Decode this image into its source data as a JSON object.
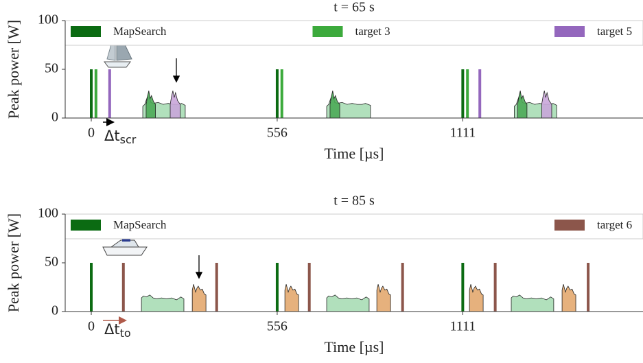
{
  "chart_data": [
    {
      "type": "bar",
      "title": "t = 65 s",
      "xlabel": "Time [µs]",
      "ylabel": "Peak power [W]",
      "xlim": [
        -78,
        1650
      ],
      "ylim": [
        0,
        100
      ],
      "xticks": [
        0,
        556,
        1111
      ],
      "yticks": [
        0,
        50,
        100
      ],
      "legend": "upper",
      "annotation": {
        "text": "Δt",
        "sub": "scr"
      },
      "series": [
        {
          "name": "MapSearch",
          "color": "#0b6b12",
          "x": [
            0,
            556,
            1111
          ],
          "values": [
            50,
            50,
            50
          ]
        },
        {
          "name": "target 3",
          "color": "#3caa3c",
          "x": [
            14,
            570,
            1125
          ],
          "values": [
            50,
            50,
            50
          ]
        },
        {
          "name": "target 5",
          "color": "#9467bd",
          "x": [
            55,
            1162
          ],
          "values": [
            50,
            50
          ]
        }
      ],
      "echoes": [
        {
          "color": "#a8ddb5",
          "x": [
            154,
            154,
            160,
            166,
            172,
            178,
            186,
            200,
            215,
            230,
            245,
            260,
            270,
            281,
            281
          ],
          "values": [
            0,
            12,
            14,
            20,
            26,
            16,
            15,
            16,
            14,
            15,
            14,
            14,
            15,
            13,
            0
          ]
        },
        {
          "color": "#4daa57",
          "x": [
            164,
            164,
            168,
            172,
            176,
            180,
            186,
            192,
            192
          ],
          "values": [
            0,
            14,
            22,
            28,
            20,
            23,
            17,
            14,
            0
          ]
        },
        {
          "color": "#c9a6d9",
          "x": [
            236,
            236,
            240,
            244,
            248,
            252,
            258,
            266,
            266
          ],
          "values": [
            0,
            14,
            22,
            28,
            21,
            26,
            18,
            14,
            0
          ]
        },
        {
          "color": "#a8ddb5",
          "x": [
            704,
            704,
            710,
            716,
            722,
            728,
            736,
            750,
            765,
            780,
            795,
            810,
            820,
            835,
            835
          ],
          "values": [
            0,
            12,
            14,
            20,
            26,
            16,
            15,
            16,
            14,
            15,
            14,
            14,
            15,
            13,
            0
          ]
        },
        {
          "color": "#4daa57",
          "x": [
            714,
            714,
            718,
            722,
            726,
            730,
            736,
            743,
            743
          ],
          "values": [
            0,
            14,
            22,
            28,
            20,
            23,
            17,
            14,
            0
          ]
        },
        {
          "color": "#a8ddb5",
          "x": [
            1265,
            1265,
            1271,
            1277,
            1283,
            1289,
            1297,
            1311,
            1326,
            1341,
            1356,
            1371,
            1381,
            1392,
            1392
          ],
          "values": [
            0,
            12,
            14,
            20,
            26,
            16,
            15,
            16,
            14,
            15,
            14,
            14,
            15,
            13,
            0
          ]
        },
        {
          "color": "#4daa57",
          "x": [
            1275,
            1275,
            1279,
            1283,
            1287,
            1291,
            1297,
            1303,
            1303
          ],
          "values": [
            0,
            14,
            22,
            28,
            20,
            23,
            17,
            14,
            0
          ]
        },
        {
          "color": "#c9a6d9",
          "x": [
            1347,
            1347,
            1351,
            1355,
            1359,
            1363,
            1369,
            1377,
            1377
          ],
          "values": [
            0,
            14,
            22,
            28,
            21,
            26,
            18,
            14,
            0
          ]
        }
      ]
    },
    {
      "type": "bar",
      "title": "t = 85 s",
      "xlabel": "Time [µs]",
      "ylabel": "Peak power [W]",
      "xlim": [
        -78,
        1650
      ],
      "ylim": [
        0,
        100
      ],
      "xticks": [
        0,
        556,
        1111
      ],
      "yticks": [
        0,
        50,
        100
      ],
      "legend": "upper",
      "annotation": {
        "text": "Δt",
        "sub": "to"
      },
      "series": [
        {
          "name": "MapSearch",
          "color": "#0b6b12",
          "x": [
            0,
            556,
            1111
          ],
          "values": [
            50,
            50,
            50
          ]
        },
        {
          "name": "target 6",
          "color": "#8c564b",
          "x": [
            96,
            375,
            652,
            931,
            1208,
            1486
          ],
          "values": [
            50,
            50,
            50,
            50,
            50,
            50
          ]
        }
      ],
      "echoes": [
        {
          "color": "#a8ddb5",
          "x": [
            150,
            150,
            156,
            165,
            175,
            185,
            195,
            210,
            225,
            240,
            255,
            268,
            277,
            277
          ],
          "values": [
            0,
            14,
            16,
            15,
            17,
            14,
            13,
            14,
            13,
            14,
            12,
            15,
            13,
            0
          ]
        },
        {
          "color": "#e3a86f",
          "x": [
            302,
            302,
            306,
            309,
            312,
            316,
            320,
            326,
            332,
            338,
            343,
            343
          ],
          "values": [
            0,
            22,
            28,
            24,
            20,
            24,
            26,
            22,
            23,
            18,
            17,
            0
          ]
        },
        {
          "color": "#e3a86f",
          "x": [
            579,
            579,
            583,
            586,
            589,
            593,
            597,
            603,
            609,
            615,
            620,
            620
          ],
          "values": [
            0,
            22,
            28,
            24,
            20,
            24,
            26,
            22,
            23,
            18,
            17,
            0
          ]
        },
        {
          "color": "#a8ddb5",
          "x": [
            704,
            704,
            710,
            719,
            729,
            739,
            749,
            764,
            779,
            794,
            809,
            822,
            831,
            831
          ],
          "values": [
            0,
            14,
            16,
            15,
            17,
            14,
            13,
            14,
            13,
            14,
            12,
            15,
            13,
            0
          ]
        },
        {
          "color": "#e3a86f",
          "x": [
            854,
            854,
            858,
            861,
            864,
            868,
            872,
            878,
            884,
            890,
            895,
            895
          ],
          "values": [
            0,
            22,
            28,
            24,
            20,
            24,
            26,
            22,
            23,
            18,
            17,
            0
          ]
        },
        {
          "color": "#e3a86f",
          "x": [
            1131,
            1131,
            1135,
            1138,
            1141,
            1145,
            1149,
            1155,
            1161,
            1167,
            1172,
            1172
          ],
          "values": [
            0,
            22,
            28,
            24,
            20,
            24,
            26,
            22,
            23,
            18,
            17,
            0
          ]
        },
        {
          "color": "#a8ddb5",
          "x": [
            1256,
            1256,
            1262,
            1271,
            1281,
            1291,
            1301,
            1316,
            1331,
            1346,
            1361,
            1374,
            1383,
            1383
          ],
          "values": [
            0,
            14,
            16,
            15,
            17,
            14,
            13,
            14,
            13,
            14,
            12,
            15,
            13,
            0
          ]
        },
        {
          "color": "#e3a86f",
          "x": [
            1408,
            1408,
            1412,
            1415,
            1418,
            1422,
            1426,
            1432,
            1438,
            1444,
            1449,
            1449
          ],
          "values": [
            0,
            22,
            28,
            24,
            20,
            24,
            26,
            22,
            23,
            18,
            17,
            0
          ]
        }
      ]
    }
  ]
}
